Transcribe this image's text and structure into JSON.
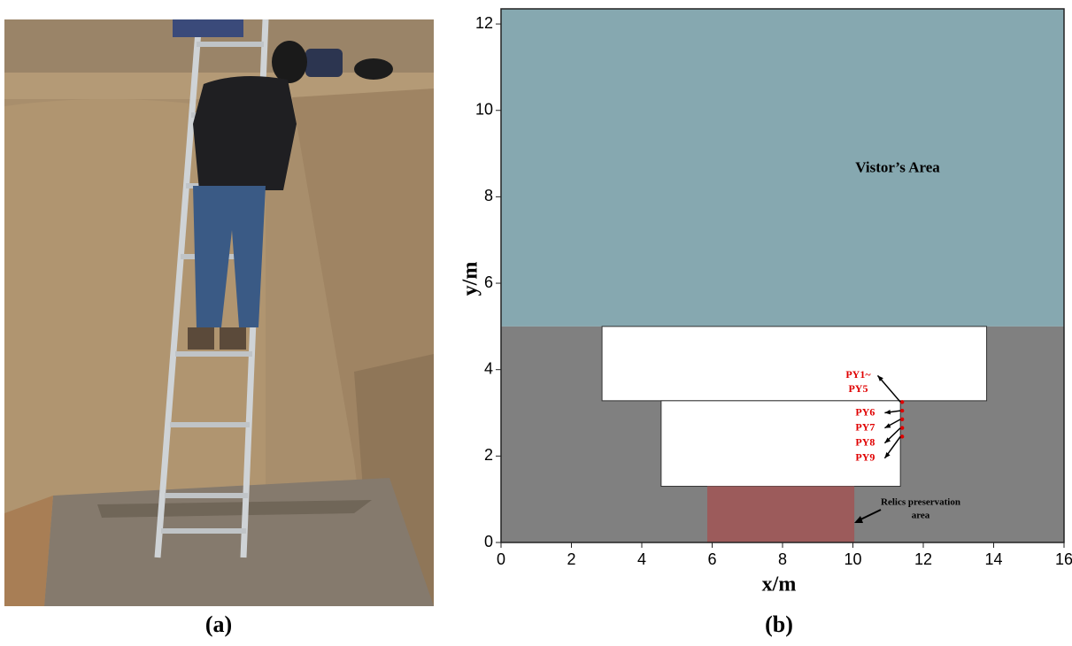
{
  "photo": {
    "label": "(a)"
  },
  "diagram": {
    "label": "(b)",
    "xlabel": "x/m",
    "ylabel": "y/m",
    "xlim": [
      0,
      16
    ],
    "ylim": [
      0,
      12.35
    ],
    "xticks": [
      0,
      2,
      4,
      6,
      8,
      10,
      12,
      14,
      16
    ],
    "yticks": [
      0,
      2,
      4,
      6,
      8,
      10,
      12
    ],
    "regions": [
      {
        "x": [
          0,
          16
        ],
        "y": [
          5,
          12.35
        ],
        "color": "#86a8b0",
        "label": "Vistor’s Area"
      },
      {
        "x": [
          0,
          16
        ],
        "y": [
          0,
          5
        ],
        "color": "#808080"
      },
      {
        "x": [
          2.87,
          13.8
        ],
        "y": [
          3.28,
          5
        ],
        "color": "#ffffff"
      },
      {
        "x": [
          4.55,
          11.35
        ],
        "y": [
          1.3,
          3.28
        ],
        "color": "#ffffff"
      },
      {
        "x": [
          5.86,
          10.04
        ],
        "y": [
          0,
          1.3
        ],
        "color": "#9c5b5b"
      }
    ],
    "sensors": [
      {
        "label": [
          "PY1~",
          "PY5"
        ],
        "x": 11.4,
        "y": 3.25
      },
      {
        "label": "PY6",
        "x": 11.4,
        "y": 3.05
      },
      {
        "label": "PY7",
        "x": 11.4,
        "y": 2.85
      },
      {
        "label": "PY8",
        "x": 11.4,
        "y": 2.65
      },
      {
        "label": "PY9",
        "x": 11.4,
        "y": 2.45
      }
    ],
    "annotation": {
      "label": [
        "Relics preservation",
        "area"
      ]
    }
  }
}
